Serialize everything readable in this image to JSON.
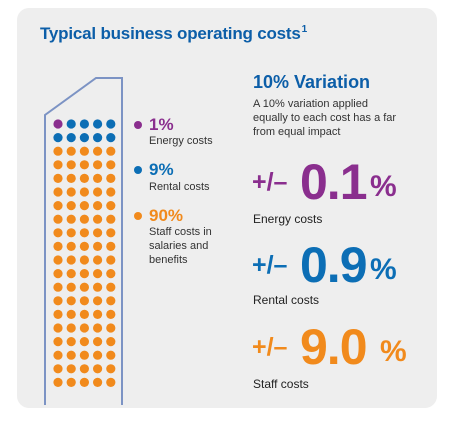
{
  "title": "Typical business operating costs",
  "title_footnote": "1",
  "colors": {
    "energy": "#8a2e8e",
    "rental": "#0c6eb5",
    "staff": "#f18a1c",
    "title": "#0c5ea8",
    "outline": "#7c93c4"
  },
  "legend": [
    {
      "pct": "1%",
      "label_lines": [
        "Energy costs"
      ],
      "dots": 1
    },
    {
      "pct": "9%",
      "label_lines": [
        "Rental costs"
      ],
      "dots": 9
    },
    {
      "pct": "90%",
      "label_lines": [
        "Staff costs in",
        "salaries and",
        "benefits"
      ],
      "dots": 90
    }
  ],
  "variation": {
    "heading": "10% Variation",
    "description_lines": [
      "A 10% variation applied",
      "equally to each cost has a far",
      "from equal impact"
    ],
    "items": [
      {
        "prefix": "+/–",
        "value": "0.1",
        "unit": "%",
        "label": "Energy costs"
      },
      {
        "prefix": "+/–",
        "value": "0.9",
        "unit": "%",
        "label": "Rental costs"
      },
      {
        "prefix": "+/–",
        "value": "9.0",
        "unit": "%",
        "label": "Staff costs"
      }
    ]
  }
}
